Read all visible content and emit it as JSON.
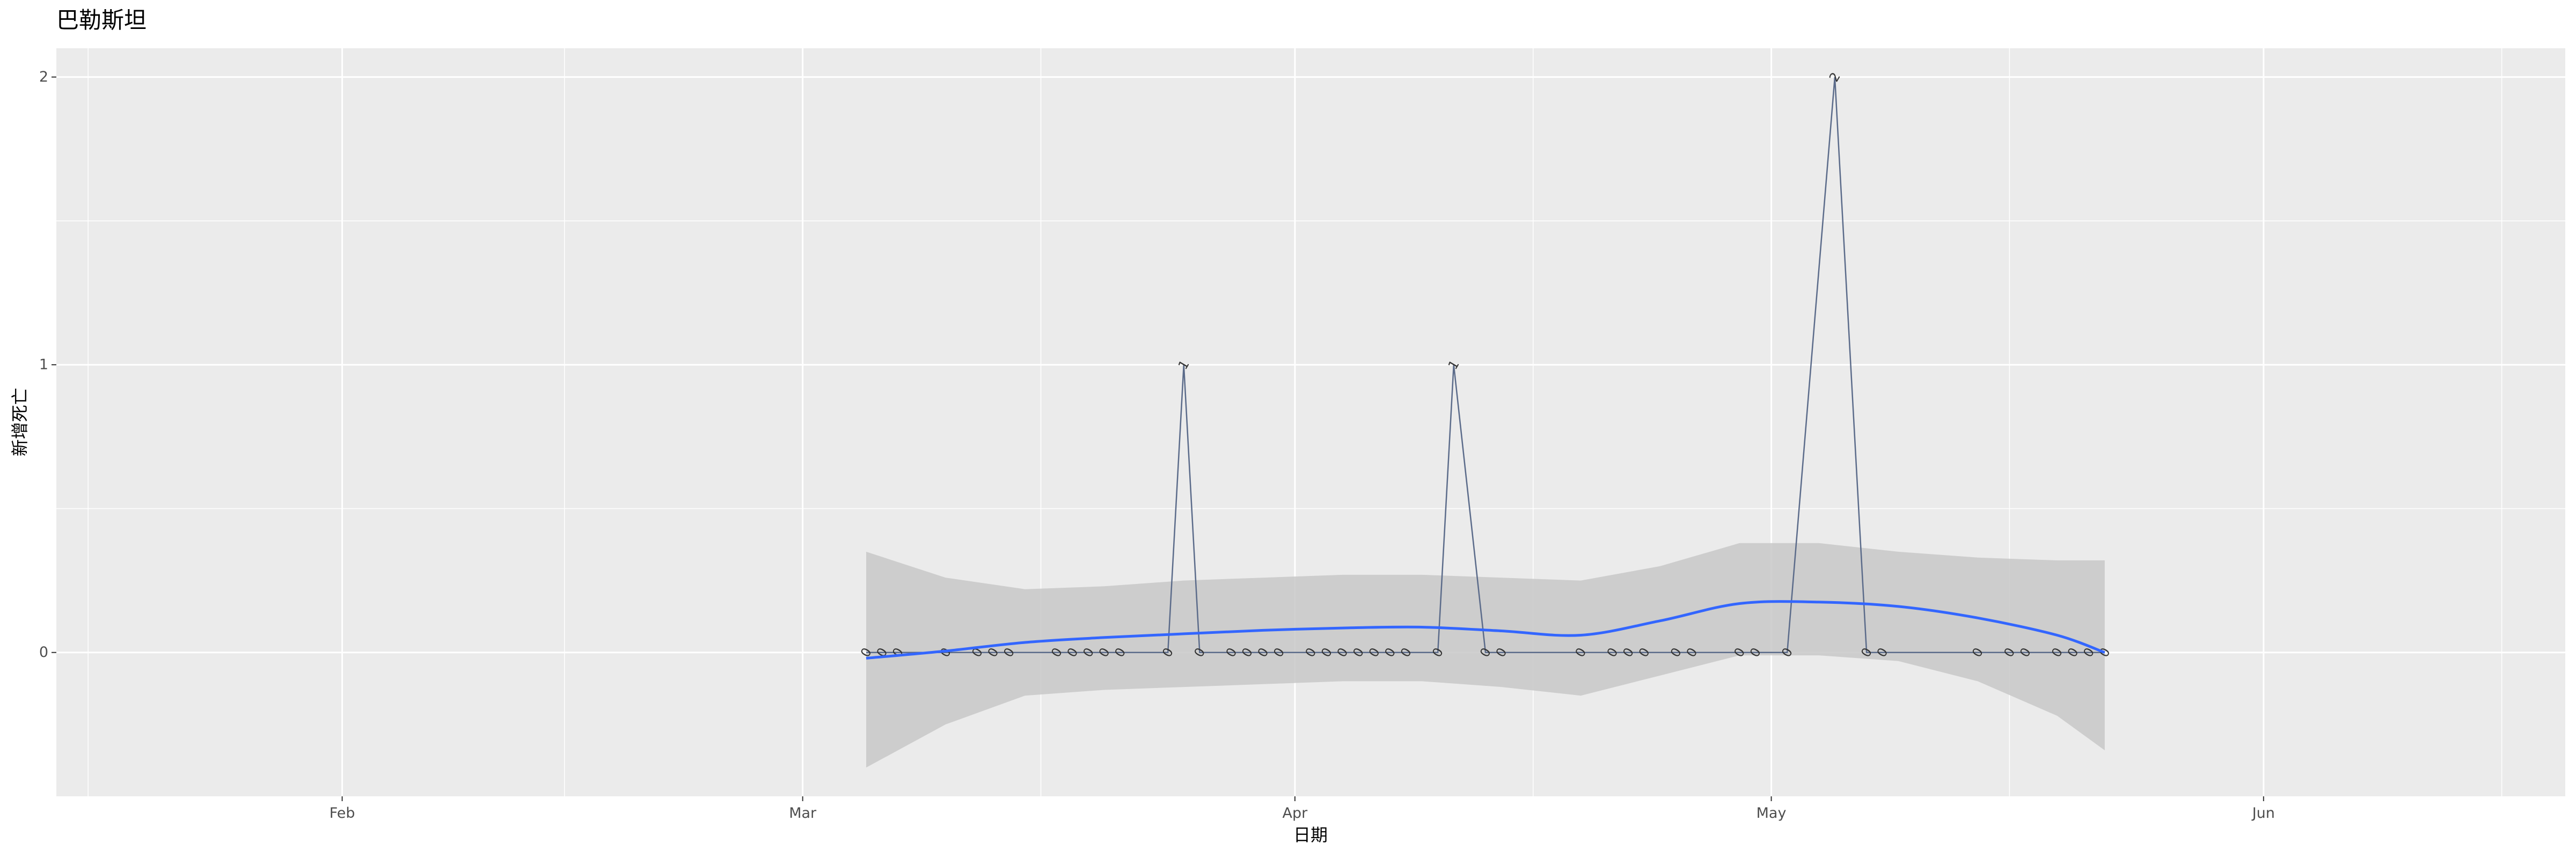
{
  "chart_data": {
    "type": "line",
    "title": "巴勒斯坦",
    "xlabel": "日期",
    "ylabel": "新增死亡",
    "x_range": [
      "2020-01-14",
      "2020-06-20"
    ],
    "ylim": [
      -0.5,
      2.1
    ],
    "y_ticks": [
      0,
      1,
      2
    ],
    "x_ticks": [
      {
        "date": "2020-02-01",
        "label": "Feb"
      },
      {
        "date": "2020-03-01",
        "label": "Mar"
      },
      {
        "date": "2020-04-01",
        "label": "Apr"
      },
      {
        "date": "2020-05-01",
        "label": "May"
      },
      {
        "date": "2020-06-01",
        "label": "Jun"
      }
    ],
    "x_minor_ticks": [
      "2020-01-16",
      "2020-02-15",
      "2020-03-16",
      "2020-04-16",
      "2020-05-16",
      "2020-06-16"
    ],
    "grid": true,
    "colors": {
      "panel": "#ebebeb",
      "grid": "#ffffff",
      "series_line": "#5b6b8a",
      "smooth_line": "#3366ff",
      "ribbon": "#c8c8c8"
    },
    "series": [
      {
        "x": [
          "2020-03-05",
          "2020-03-06",
          "2020-03-07",
          "2020-03-10",
          "2020-03-12",
          "2020-03-13",
          "2020-03-14",
          "2020-03-17",
          "2020-03-18",
          "2020-03-19",
          "2020-03-20",
          "2020-03-21",
          "2020-03-24",
          "2020-03-25",
          "2020-03-26",
          "2020-03-28",
          "2020-03-29",
          "2020-03-30",
          "2020-03-31",
          "2020-04-02",
          "2020-04-03",
          "2020-04-04",
          "2020-04-05",
          "2020-04-06",
          "2020-04-07",
          "2020-04-08",
          "2020-04-10",
          "2020-04-11",
          "2020-04-13",
          "2020-04-14",
          "2020-04-19",
          "2020-04-21",
          "2020-04-22",
          "2020-04-23",
          "2020-04-25",
          "2020-04-26",
          "2020-04-29",
          "2020-04-30",
          "2020-05-02",
          "2020-05-05",
          "2020-05-07",
          "2020-05-08",
          "2020-05-14",
          "2020-05-16",
          "2020-05-17",
          "2020-05-19",
          "2020-05-20",
          "2020-05-21",
          "2020-05-22"
        ],
        "values": [
          0,
          0,
          0,
          0,
          0,
          0,
          0,
          0,
          0,
          0,
          0,
          0,
          0,
          1,
          0,
          0,
          0,
          0,
          0,
          0,
          0,
          0,
          0,
          0,
          0,
          0,
          0,
          1,
          0,
          0,
          0,
          0,
          0,
          0,
          0,
          0,
          0,
          0,
          0,
          2,
          0,
          0,
          0,
          0,
          0,
          0,
          0,
          0,
          0
        ]
      }
    ],
    "smooth": {
      "x": [
        "2020-03-05",
        "2020-03-10",
        "2020-03-15",
        "2020-03-20",
        "2020-03-25",
        "2020-03-30",
        "2020-04-04",
        "2020-04-09",
        "2020-04-14",
        "2020-04-19",
        "2020-04-24",
        "2020-04-29",
        "2020-05-04",
        "2020-05-09",
        "2020-05-14",
        "2020-05-19",
        "2020-05-22"
      ],
      "y": [
        -0.02,
        0.005,
        0.035,
        0.052,
        0.065,
        0.077,
        0.085,
        0.088,
        0.075,
        0.06,
        0.11,
        0.17,
        0.175,
        0.16,
        0.12,
        0.06,
        0.0
      ],
      "lower": [
        -0.4,
        -0.25,
        -0.15,
        -0.13,
        -0.12,
        -0.11,
        -0.1,
        -0.1,
        -0.12,
        -0.15,
        -0.08,
        -0.01,
        -0.01,
        -0.03,
        -0.1,
        -0.22,
        -0.34
      ],
      "upper": [
        0.35,
        0.26,
        0.22,
        0.23,
        0.25,
        0.26,
        0.27,
        0.27,
        0.26,
        0.25,
        0.3,
        0.38,
        0.38,
        0.35,
        0.33,
        0.32,
        0.32
      ]
    }
  }
}
